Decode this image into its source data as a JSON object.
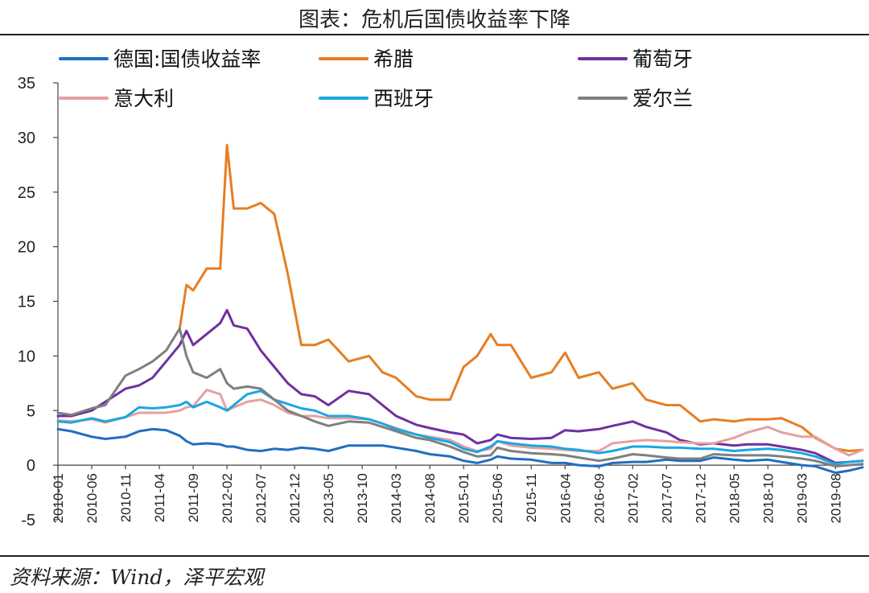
{
  "title": "图表：危机后国债收益率下降",
  "source": "资料来源：Wind，泽平宏观",
  "chart_data": {
    "type": "line",
    "title": "图表：危机后国债收益率下降",
    "xlabel": "",
    "ylabel": "",
    "ylim": [
      -5,
      35
    ],
    "yticks": [
      -5,
      0,
      5,
      10,
      15,
      20,
      25,
      30,
      35
    ],
    "x": [
      "2010-01",
      "2010-03",
      "2010-06",
      "2010-08",
      "2010-11",
      "2011-01",
      "2011-03",
      "2011-05",
      "2011-07",
      "2011-08",
      "2011-09",
      "2011-11",
      "2012-01",
      "2012-02",
      "2012-03",
      "2012-05",
      "2012-07",
      "2012-09",
      "2012-11",
      "2013-01",
      "2013-03",
      "2013-05",
      "2013-08",
      "2013-11",
      "2014-01",
      "2014-03",
      "2014-06",
      "2014-08",
      "2014-11",
      "2015-01",
      "2015-03",
      "2015-05",
      "2015-06",
      "2015-08",
      "2015-11",
      "2016-02",
      "2016-04",
      "2016-06",
      "2016-09",
      "2016-11",
      "2017-02",
      "2017-04",
      "2017-07",
      "2017-09",
      "2017-12",
      "2018-02",
      "2018-05",
      "2018-07",
      "2018-10",
      "2018-12",
      "2019-03",
      "2019-05",
      "2019-08",
      "2019-10",
      "2019-12"
    ],
    "xtick_labels": [
      "2010-01",
      "2010-06",
      "2010-11",
      "2011-04",
      "2011-09",
      "2012-02",
      "2012-07",
      "2012-12",
      "2013-05",
      "2013-10",
      "2014-03",
      "2014-08",
      "2015-01",
      "2015-06",
      "2015-11",
      "2016-04",
      "2016-09",
      "2017-02",
      "2017-07",
      "2017-12",
      "2018-05",
      "2018-10",
      "2019-03",
      "2019-08"
    ],
    "legend": {
      "placement": "top",
      "columns": 3
    },
    "grid": false,
    "series": [
      {
        "name": "德国:国债收益率",
        "color": "#1f6fbf",
        "values": [
          3.3,
          3.1,
          2.6,
          2.4,
          2.6,
          3.1,
          3.3,
          3.2,
          2.7,
          2.2,
          1.9,
          2.0,
          1.9,
          1.7,
          1.7,
          1.4,
          1.3,
          1.5,
          1.4,
          1.6,
          1.5,
          1.3,
          1.8,
          1.8,
          1.8,
          1.6,
          1.3,
          1.0,
          0.8,
          0.4,
          0.2,
          0.5,
          0.8,
          0.6,
          0.5,
          0.2,
          0.2,
          0.0,
          -0.1,
          0.2,
          0.3,
          0.3,
          0.5,
          0.4,
          0.4,
          0.7,
          0.5,
          0.4,
          0.5,
          0.3,
          0.0,
          -0.1,
          -0.7,
          -0.5,
          -0.2
        ]
      },
      {
        "name": "希腊",
        "color": "#e67e22",
        "values": [
          null,
          null,
          null,
          null,
          null,
          null,
          null,
          null,
          12.5,
          16.5,
          16.0,
          18.0,
          18.0,
          29.3,
          23.5,
          23.5,
          24.0,
          23.0,
          17.5,
          11.0,
          11.0,
          11.5,
          9.5,
          10.0,
          8.5,
          8.0,
          6.3,
          6.0,
          6.0,
          9.0,
          10.0,
          12.0,
          11.0,
          11.0,
          8.0,
          8.5,
          10.3,
          8.0,
          8.5,
          7.0,
          7.5,
          6.0,
          5.5,
          5.5,
          4.0,
          4.2,
          4.0,
          4.2,
          4.2,
          4.3,
          3.5,
          2.5,
          1.5,
          1.3,
          1.4
        ]
      },
      {
        "name": "葡萄牙",
        "color": "#7030a0",
        "values": [
          4.5,
          4.5,
          5.0,
          5.8,
          7.0,
          7.3,
          8.0,
          9.5,
          11.0,
          12.3,
          11.0,
          12.0,
          13.0,
          14.2,
          12.8,
          12.5,
          10.5,
          9.0,
          7.5,
          6.5,
          6.3,
          5.5,
          6.8,
          6.5,
          5.5,
          4.5,
          3.7,
          3.4,
          3.0,
          2.8,
          2.0,
          2.3,
          2.8,
          2.5,
          2.4,
          2.5,
          3.2,
          3.1,
          3.3,
          3.6,
          4.0,
          3.5,
          3.0,
          2.3,
          1.9,
          2.0,
          1.8,
          1.9,
          1.9,
          1.7,
          1.4,
          1.1,
          0.2,
          0.3,
          0.4
        ]
      },
      {
        "name": "意大利",
        "color": "#e6a0a0",
        "values": [
          4.1,
          4.0,
          4.2,
          3.9,
          4.4,
          4.8,
          4.8,
          4.8,
          5.0,
          5.3,
          5.4,
          6.9,
          6.5,
          5.0,
          5.3,
          5.8,
          6.0,
          5.5,
          4.8,
          4.5,
          4.5,
          4.3,
          4.3,
          4.2,
          3.8,
          3.4,
          2.8,
          2.6,
          2.3,
          1.7,
          1.3,
          1.5,
          2.2,
          1.8,
          1.6,
          1.5,
          1.4,
          1.3,
          1.3,
          2.0,
          2.2,
          2.3,
          2.2,
          2.1,
          2.0,
          2.0,
          2.5,
          3.0,
          3.5,
          3.0,
          2.6,
          2.6,
          1.5,
          0.9,
          1.4
        ]
      },
      {
        "name": "西班牙",
        "color": "#1aa7e0",
        "values": [
          4.0,
          3.9,
          4.3,
          4.0,
          4.4,
          5.3,
          5.2,
          5.3,
          5.5,
          5.8,
          5.3,
          5.8,
          5.3,
          5.0,
          5.5,
          6.5,
          6.8,
          6.0,
          5.6,
          5.2,
          5.0,
          4.5,
          4.5,
          4.2,
          3.8,
          3.3,
          2.8,
          2.5,
          2.1,
          1.5,
          1.2,
          1.7,
          2.2,
          2.0,
          1.8,
          1.7,
          1.5,
          1.4,
          1.1,
          1.3,
          1.7,
          1.7,
          1.6,
          1.6,
          1.5,
          1.5,
          1.3,
          1.4,
          1.5,
          1.4,
          1.1,
          0.8,
          0.1,
          0.3,
          0.4
        ]
      },
      {
        "name": "爱尔兰",
        "color": "#7f7f7f",
        "values": [
          4.8,
          4.6,
          5.2,
          5.5,
          8.2,
          8.8,
          9.5,
          10.5,
          12.5,
          10.0,
          8.5,
          8.0,
          8.8,
          7.5,
          7.0,
          7.2,
          7.0,
          6.0,
          5.0,
          4.5,
          4.0,
          3.6,
          4.0,
          3.9,
          3.5,
          3.1,
          2.5,
          2.3,
          1.7,
          1.2,
          0.8,
          0.9,
          1.6,
          1.3,
          1.1,
          1.0,
          0.9,
          0.7,
          0.4,
          0.6,
          1.0,
          0.9,
          0.7,
          0.6,
          0.6,
          1.0,
          0.9,
          0.9,
          0.9,
          0.8,
          0.6,
          0.4,
          -0.1,
          0.0,
          0.1
        ]
      }
    ]
  }
}
